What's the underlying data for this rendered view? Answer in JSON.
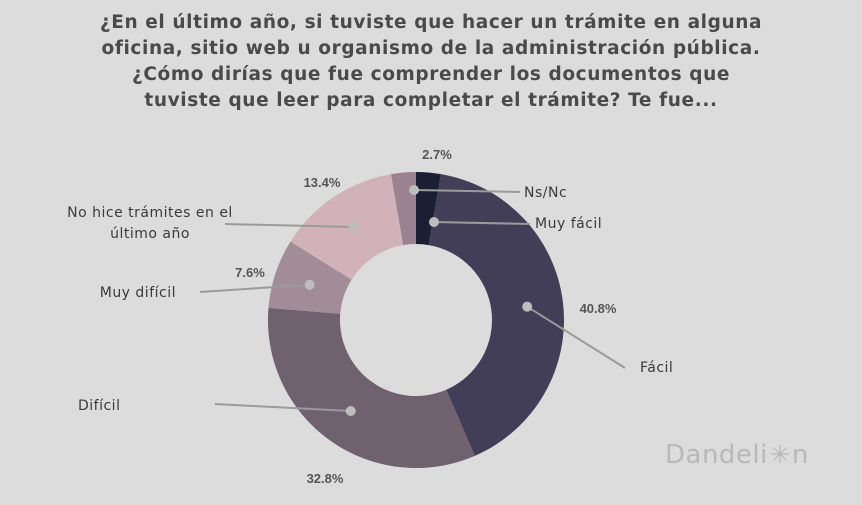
{
  "title_lines": [
    "¿En el último año, si tuviste que hacer un trámite en alguna",
    "oficina, sitio web u organismo de la administración pública.",
    "¿Cómo dirías que fue comprender los documentos que",
    "tuviste que leer para completar el trámite? Te fue..."
  ],
  "chart_data": {
    "type": "pie",
    "donut": true,
    "slices": [
      {
        "label": "Muy fácil",
        "value": 2.7,
        "pct_label": "2.7%",
        "color": "#1c1f33"
      },
      {
        "label": "Fácil",
        "value": 40.8,
        "pct_label": "40.8%",
        "color": "#433e58"
      },
      {
        "label": "Difícil",
        "value": 32.8,
        "pct_label": "32.8%",
        "color": "#70616f"
      },
      {
        "label": "Muy difícil",
        "value": 7.6,
        "pct_label": "7.6%",
        "color": "#a28c96"
      },
      {
        "label": "No hice trámites en el último año",
        "label_lines": [
          "No hice trámites en el",
          "último año"
        ],
        "value": 13.4,
        "pct_label": "13.4%",
        "color": "#d2b2ba"
      },
      {
        "label": "Ns/Nc",
        "value": 2.7,
        "pct_label": "",
        "color": "#9b8290"
      }
    ]
  },
  "brand": {
    "text": "Dandeli",
    "text_end": "n",
    "icon": "dandelion-seed-icon"
  }
}
